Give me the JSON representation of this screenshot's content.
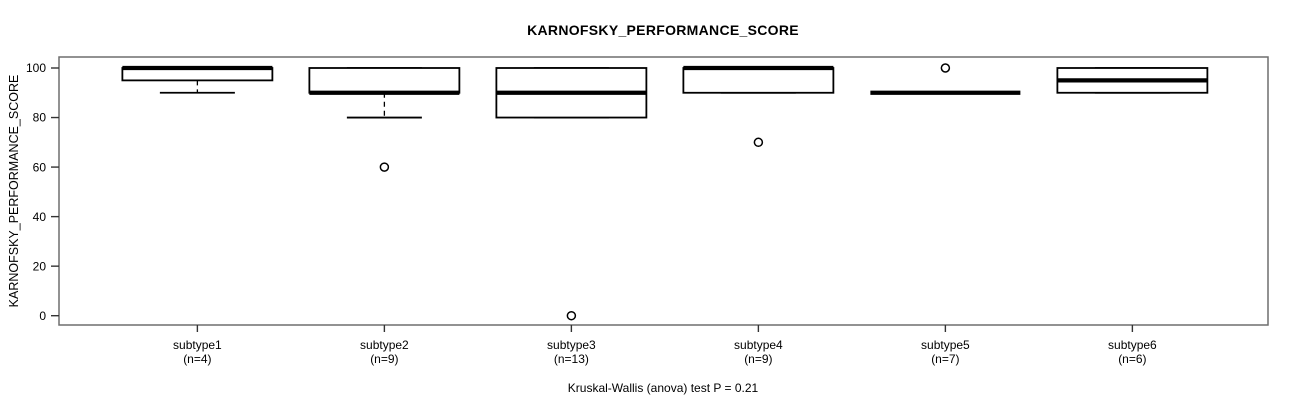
{
  "page": {
    "background": "#ffffff"
  },
  "chart_data": {
    "type": "boxplot",
    "title": "KARNOFSKY_PERFORMANCE_SCORE",
    "ylabel": "KARNOFSKY_PERFORMANCE_SCORE",
    "xlabel": "",
    "footer": "Kruskal-Wallis (anova) test P = 0.21",
    "ylim": [
      0,
      100
    ],
    "yticks": [
      0,
      20,
      40,
      60,
      80,
      100
    ],
    "grid": false,
    "legend": "none",
    "colors": {
      "line": "#000000",
      "frame": "#6e6e6e",
      "box_fill": "#ffffff",
      "background": "#ffffff"
    },
    "groups": [
      {
        "label": "subtype1",
        "n_label": "(n=4)",
        "n": 4,
        "q1": 95,
        "median": 100,
        "q3": 100,
        "whisker_low": 90,
        "whisker_high": 100,
        "outliers": []
      },
      {
        "label": "subtype2",
        "n_label": "(n=9)",
        "n": 9,
        "q1": 90,
        "median": 90,
        "q3": 100,
        "whisker_low": 80,
        "whisker_high": 100,
        "outliers": [
          60
        ]
      },
      {
        "label": "subtype3",
        "n_label": "(n=13)",
        "n": 13,
        "q1": 80,
        "median": 90,
        "q3": 100,
        "whisker_low": 80,
        "whisker_high": 100,
        "outliers": [
          0
        ]
      },
      {
        "label": "subtype4",
        "n_label": "(n=9)",
        "n": 9,
        "q1": 90,
        "median": 100,
        "q3": 100,
        "whisker_low": 90,
        "whisker_high": 100,
        "outliers": [
          70
        ]
      },
      {
        "label": "subtype5",
        "n_label": "(n=7)",
        "n": 7,
        "q1": 90,
        "median": 90,
        "q3": 90,
        "whisker_low": 90,
        "whisker_high": 90,
        "outliers": [
          100
        ]
      },
      {
        "label": "subtype6",
        "n_label": "(n=6)",
        "n": 6,
        "q1": 90,
        "median": 95,
        "q3": 100,
        "whisker_low": 90,
        "whisker_high": 100,
        "outliers": []
      }
    ]
  }
}
